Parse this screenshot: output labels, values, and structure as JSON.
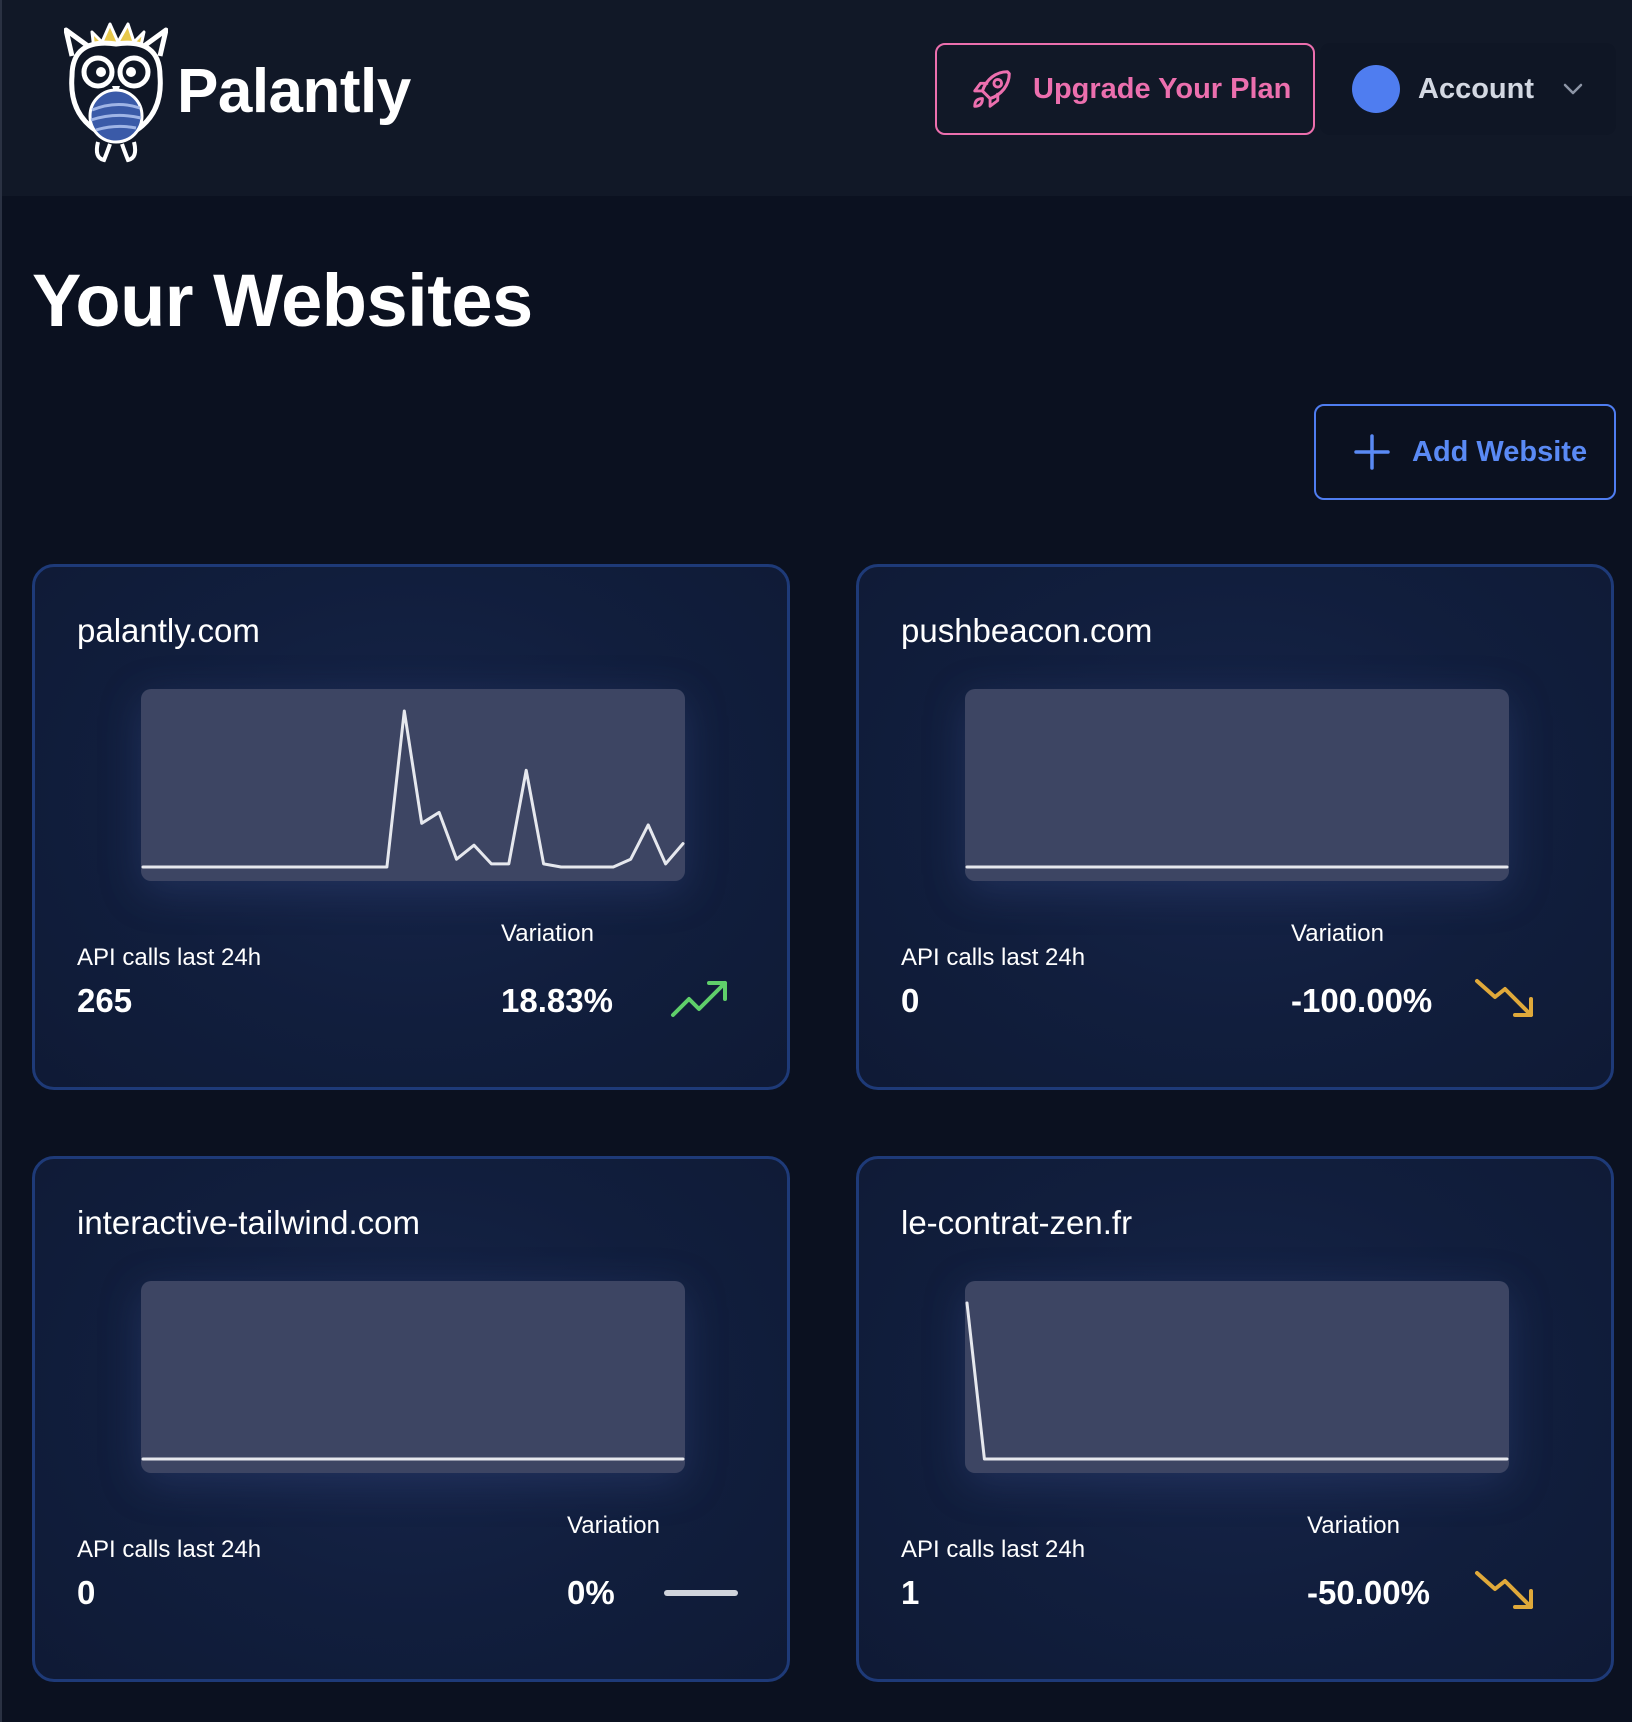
{
  "app": {
    "brand": "Palantly"
  },
  "header": {
    "upgrade_label": "Upgrade Your Plan",
    "account_label": "Account",
    "avatar_color": "#4f7df0",
    "upgrade_color": "#ec6fae"
  },
  "main": {
    "title": "Your Websites",
    "add_label": "Add Website"
  },
  "sites": [
    {
      "name": "palantly.com",
      "api_label": "API calls last 24h",
      "api_value": "265",
      "variation_label": "Variation",
      "variation_value": "18.83%",
      "trend": "trend-up-icon",
      "trend_color": "#5fcf6a"
    },
    {
      "name": "pushbeacon.com",
      "api_label": "API calls last 24h",
      "api_value": "0",
      "variation_label": "Variation",
      "variation_value": "-100.00%",
      "trend": "trend-down-icon",
      "trend_color": "#e0a93a"
    },
    {
      "name": "interactive-tailwind.com",
      "api_label": "API calls last 24h",
      "api_value": "0",
      "variation_label": "Variation",
      "variation_value": "0%",
      "trend": "trend-flat-icon",
      "trend_color": "#d0d4dc"
    },
    {
      "name": "le-contrat-zen.fr",
      "api_label": "API calls last 24h",
      "api_value": "1",
      "variation_label": "Variation",
      "variation_value": "-50.00%",
      "trend": "trend-down-icon",
      "trend_color": "#e0a93a"
    }
  ],
  "chart_data": [
    {
      "type": "line",
      "series": [
        {
          "values": [
            0,
            0,
            0,
            0,
            0,
            0,
            0,
            0,
            0,
            0,
            0,
            0,
            0,
            0,
            0,
            1.0,
            0.28,
            0.35,
            0.05,
            0.14,
            0.02,
            0.02,
            0.62,
            0.02,
            0,
            0,
            0,
            0,
            0.05,
            0.27,
            0.02,
            0.15
          ]
        }
      ]
    },
    {
      "type": "line",
      "series": [
        {
          "values": [
            0,
            0,
            0,
            0,
            0,
            0,
            0,
            0,
            0,
            0,
            0,
            0,
            0,
            0,
            0,
            0,
            0,
            0,
            0,
            0,
            0,
            0,
            0,
            0,
            0,
            0,
            0,
            0,
            0,
            0,
            0,
            0
          ]
        }
      ]
    },
    {
      "type": "line",
      "series": [
        {
          "values": [
            0,
            0,
            0,
            0,
            0,
            0,
            0,
            0,
            0,
            0,
            0,
            0,
            0,
            0,
            0,
            0,
            0,
            0,
            0,
            0,
            0,
            0,
            0,
            0,
            0,
            0,
            0,
            0,
            0,
            0,
            0,
            0
          ]
        }
      ]
    },
    {
      "type": "line",
      "series": [
        {
          "values": [
            1,
            0,
            0,
            0,
            0,
            0,
            0,
            0,
            0,
            0,
            0,
            0,
            0,
            0,
            0,
            0,
            0,
            0,
            0,
            0,
            0,
            0,
            0,
            0,
            0,
            0,
            0,
            0,
            0,
            0,
            0,
            0
          ]
        }
      ]
    }
  ]
}
